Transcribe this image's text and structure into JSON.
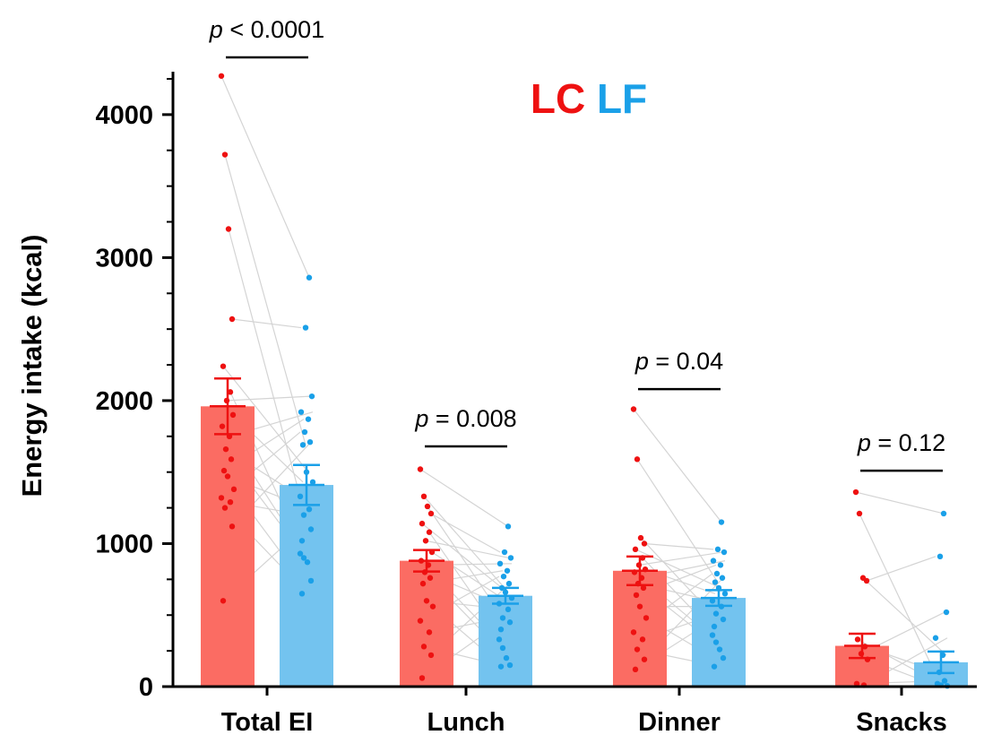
{
  "chart_data": {
    "type": "bar",
    "ylabel": "Energy intake (kcal)",
    "ylim": [
      0,
      4300
    ],
    "yticks": [
      "0",
      "1000",
      "2000",
      "3000",
      "4000"
    ],
    "ytick_values": [
      0,
      1000,
      2000,
      3000,
      4000
    ],
    "minor_tick_step": 250,
    "categories": [
      "Total EI",
      "Lunch",
      "Dinner",
      "Snacks"
    ],
    "legend_position": "top-center",
    "series": [
      {
        "name": "LC",
        "color_bar": "#fb6c63",
        "color_mark": "#ee1111",
        "values": [
          1960,
          880,
          810,
          285
        ],
        "sem": [
          195,
          75,
          100,
          85
        ],
        "points": [
          [
            4270,
            3720,
            3200,
            2570,
            2240,
            2060,
            2000,
            1900,
            1820,
            1750,
            1660,
            1590,
            1510,
            1470,
            1380,
            1320,
            1290,
            1250,
            1120,
            600
          ],
          [
            1520,
            1330,
            1260,
            1210,
            1140,
            1080,
            1020,
            940,
            880,
            850,
            800,
            760,
            720,
            600,
            560,
            460,
            380,
            280,
            220,
            60
          ],
          [
            1940,
            1590,
            1040,
            1000,
            960,
            900,
            850,
            820,
            800,
            760,
            720,
            690,
            640,
            560,
            480,
            380,
            330,
            260,
            190,
            120
          ],
          [
            1360,
            1210,
            760,
            740,
            330,
            280,
            230,
            190,
            20,
            10
          ]
        ]
      },
      {
        "name": "LF",
        "color_bar": "#73c3ef",
        "color_mark": "#1aa0e8",
        "values": [
          1410,
          635,
          620,
          170
        ],
        "sem": [
          140,
          55,
          55,
          75
        ],
        "points": [
          [
            2860,
            2510,
            2030,
            1920,
            1870,
            1780,
            1710,
            1690,
            1500,
            1430,
            1330,
            1240,
            1200,
            1100,
            1020,
            930,
            900,
            870,
            740,
            650
          ],
          [
            1120,
            940,
            900,
            860,
            810,
            770,
            720,
            690,
            660,
            620,
            580,
            540,
            480,
            450,
            400,
            330,
            270,
            200,
            150,
            140
          ],
          [
            1150,
            960,
            940,
            880,
            850,
            790,
            760,
            730,
            690,
            650,
            600,
            560,
            510,
            470,
            420,
            360,
            310,
            260,
            200,
            140
          ],
          [
            1210,
            910,
            520,
            340,
            220,
            100,
            40,
            20,
            10,
            5
          ]
        ]
      }
    ],
    "annotations": [
      {
        "category": 0,
        "italic": "p",
        "text": " < 0.0001",
        "at": 4400
      },
      {
        "category": 1,
        "italic": "p",
        "text": " = 0.008",
        "at": 1680
      },
      {
        "category": 2,
        "italic": "p",
        "text": " = 0.04",
        "at": 2080
      },
      {
        "category": 3,
        "italic": "p",
        "text": " = 0.12",
        "at": 1510
      }
    ]
  }
}
